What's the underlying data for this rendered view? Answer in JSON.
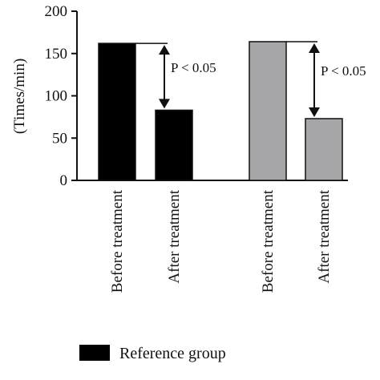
{
  "chart_data": {
    "type": "bar",
    "ylabel": "(Times/min)",
    "ylim": [
      0,
      200
    ],
    "yticks": [
      "0",
      "50",
      "100",
      "150",
      "200"
    ],
    "categories": [
      "Before treatment",
      "After treatment",
      "Before treatment",
      "After treatment"
    ],
    "values": [
      162,
      83,
      164,
      73
    ],
    "bar_colors": [
      "#000000",
      "#000000",
      "#a6a6a8",
      "#a6a6a8"
    ],
    "annotations": [
      {
        "text": "P < 0.05",
        "from_index": 0,
        "to_index": 1
      },
      {
        "text": "P < 0.05",
        "from_index": 2,
        "to_index": 3
      }
    ],
    "legend": [
      {
        "label": "Reference group",
        "color": "#000000"
      }
    ],
    "legend_position": "bottom-left"
  }
}
